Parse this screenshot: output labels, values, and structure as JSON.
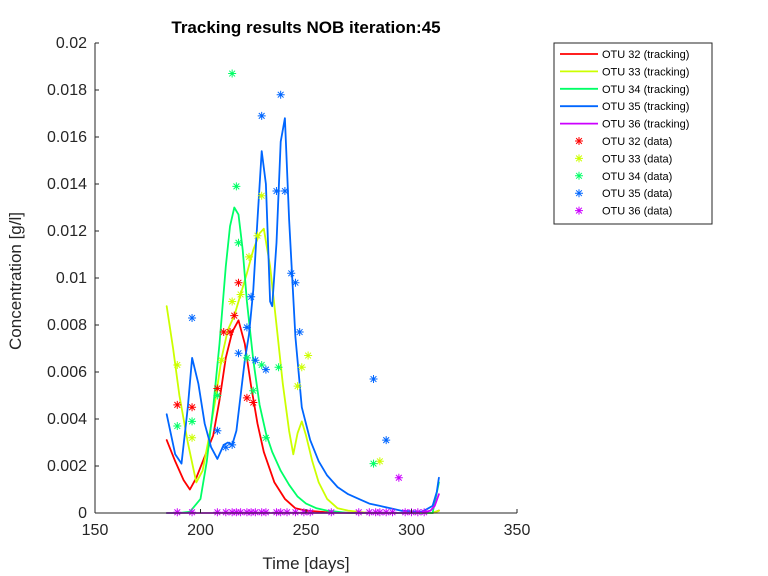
{
  "chart_data": {
    "type": "line",
    "title": "Tracking results NOB iteration:45",
    "xlabel": "Time [days]",
    "ylabel": "Concentration [g/l]",
    "xlim": [
      150,
      350
    ],
    "ylim": [
      0,
      0.02
    ],
    "xticks": [
      "150",
      "200",
      "250",
      "300",
      "350"
    ],
    "xtick_values": [
      150,
      200,
      250,
      300,
      350
    ],
    "yticks": [
      "0",
      "0.002",
      "0.004",
      "0.006",
      "0.008",
      "0.01",
      "0.012",
      "0.014",
      "0.016",
      "0.018",
      "0.02"
    ],
    "ytick_values": [
      0,
      0.002,
      0.004,
      0.006,
      0.008,
      0.01,
      0.012,
      0.014,
      0.016,
      0.018,
      0.02
    ],
    "grid": false,
    "legend_position": "top-right outside",
    "series": [
      {
        "name": "OTU 32 (tracking)",
        "kind": "line",
        "color": "#ff0000",
        "x": [
          184,
          188,
          192,
          195,
          198,
          202,
          206,
          209,
          212,
          215,
          218,
          221,
          224,
          227,
          230,
          235,
          240,
          245,
          250,
          260,
          270,
          280,
          300,
          310,
          313
        ],
        "y": [
          0.0031,
          0.0022,
          0.0014,
          0.001,
          0.0015,
          0.0024,
          0.0033,
          0.0048,
          0.0066,
          0.0077,
          0.0082,
          0.0072,
          0.0054,
          0.0038,
          0.0026,
          0.0013,
          0.0006,
          0.0002,
          0.0001,
          3e-05,
          1e-05,
          0,
          0,
          0,
          0.0001
        ]
      },
      {
        "name": "OTU 33 (tracking)",
        "kind": "line",
        "color": "#ccff00",
        "x": [
          184,
          187,
          190,
          194,
          198,
          201,
          204,
          207,
          210,
          213,
          216,
          219,
          222,
          225,
          228,
          230,
          233,
          236,
          239,
          242,
          244,
          246,
          248,
          250,
          253,
          256,
          260,
          265,
          270,
          280,
          300,
          310,
          313
        ],
        "y": [
          0.0088,
          0.007,
          0.005,
          0.003,
          0.0013,
          0.0018,
          0.0032,
          0.0048,
          0.0066,
          0.0078,
          0.0084,
          0.0093,
          0.0102,
          0.0112,
          0.0119,
          0.0121,
          0.0105,
          0.008,
          0.0055,
          0.0035,
          0.0025,
          0.0034,
          0.0039,
          0.0033,
          0.0022,
          0.0013,
          0.0006,
          0.0002,
          0.0001,
          0,
          0,
          0,
          0.0001
        ]
      },
      {
        "name": "OTU 34 (tracking)",
        "kind": "line",
        "color": "#00ff66",
        "x": [
          184,
          190,
          195,
          200,
          203,
          206,
          209,
          212,
          214,
          216,
          218,
          220,
          222,
          225,
          228,
          231,
          234,
          238,
          242,
          246,
          250,
          255,
          260,
          265,
          270,
          280,
          300,
          310,
          313
        ],
        "y": [
          0,
          0,
          5e-05,
          0.0006,
          0.0022,
          0.0045,
          0.0072,
          0.0105,
          0.0122,
          0.013,
          0.0127,
          0.0112,
          0.009,
          0.0065,
          0.0046,
          0.0034,
          0.0026,
          0.0018,
          0.0012,
          0.0007,
          0.0004,
          0.0002,
          0.0001,
          5e-05,
          0,
          0,
          0,
          0,
          0.0013
        ]
      },
      {
        "name": "OTU 35 (tracking)",
        "kind": "line",
        "color": "#0066ff",
        "x": [
          184,
          188,
          191,
          194,
          196,
          199,
          202,
          205,
          208,
          211,
          213,
          215,
          217,
          219,
          221,
          223,
          225,
          227,
          229,
          231,
          233,
          234,
          236,
          238,
          240,
          242,
          245,
          248,
          252,
          256,
          260,
          265,
          270,
          275,
          280,
          285,
          290,
          295,
          300,
          305,
          310,
          312,
          313
        ],
        "y": [
          0.0042,
          0.0025,
          0.0021,
          0.0045,
          0.0066,
          0.0055,
          0.0038,
          0.0028,
          0.0023,
          0.0029,
          0.003,
          0.0029,
          0.0035,
          0.005,
          0.0065,
          0.0076,
          0.0095,
          0.0125,
          0.0154,
          0.014,
          0.009,
          0.0088,
          0.0115,
          0.0158,
          0.0168,
          0.0125,
          0.0075,
          0.0045,
          0.0031,
          0.0022,
          0.0016,
          0.0011,
          0.0008,
          0.0006,
          0.0004,
          0.0003,
          0.0002,
          0.0001,
          7e-05,
          5e-05,
          0.0003,
          0.0009,
          0.0015
        ]
      },
      {
        "name": "OTU 36 (tracking)",
        "kind": "line",
        "color": "#cc00ff",
        "x": [
          184,
          200,
          250,
          300,
          306,
          309,
          311,
          313
        ],
        "y": [
          0,
          0,
          0,
          0,
          3e-05,
          0.0001,
          0.0003,
          0.0008
        ]
      },
      {
        "name": "OTU 32 (data)",
        "kind": "scatter",
        "color": "#ff0000",
        "x": [
          189,
          196,
          208,
          211,
          214,
          216,
          218,
          222,
          225
        ],
        "y": [
          0.0046,
          0.0045,
          0.0053,
          0.0077,
          0.0077,
          0.0084,
          0.0098,
          0.0049,
          0.0047
        ]
      },
      {
        "name": "OTU 33 (data)",
        "kind": "scatter",
        "color": "#ccff00",
        "x": [
          189,
          196,
          210,
          215,
          219,
          223,
          227,
          229,
          246,
          248,
          251,
          285
        ],
        "y": [
          0.0063,
          0.0032,
          0.0065,
          0.009,
          0.0093,
          0.0109,
          0.0118,
          0.0135,
          0.0054,
          0.0062,
          0.0067,
          0.0022
        ]
      },
      {
        "name": "OTU 34 (data)",
        "kind": "scatter",
        "color": "#00ff66",
        "x": [
          189,
          196,
          208,
          215,
          217,
          218,
          222,
          225,
          229,
          231,
          237,
          282
        ],
        "y": [
          0.0037,
          0.0039,
          0.005,
          0.0187,
          0.0139,
          0.0115,
          0.0066,
          0.0052,
          0.0063,
          0.0032,
          0.0062,
          0.0021
        ]
      },
      {
        "name": "OTU 35 (data)",
        "kind": "scatter",
        "color": "#0066ff",
        "x": [
          196,
          208,
          212,
          215,
          218,
          222,
          224,
          226,
          229,
          231,
          236,
          238,
          240,
          243,
          245,
          247,
          282,
          288
        ],
        "y": [
          0.0083,
          0.0035,
          0.0028,
          0.0029,
          0.0068,
          0.0079,
          0.0092,
          0.0065,
          0.0169,
          0.0061,
          0.0137,
          0.0178,
          0.0137,
          0.0102,
          0.0098,
          0.0077,
          0.0057,
          0.0031
        ]
      },
      {
        "name": "OTU 36 (data)",
        "kind": "scatter",
        "color": "#cc00ff",
        "x": [
          189,
          196,
          208,
          212,
          215,
          217,
          219,
          222,
          224,
          226,
          229,
          231,
          236,
          238,
          241,
          245,
          249,
          252,
          262,
          275,
          280,
          283,
          285,
          288,
          291,
          294,
          297,
          300,
          303,
          306
        ],
        "y": [
          3e-05,
          3e-05,
          3e-05,
          3e-05,
          3e-05,
          3e-05,
          3e-05,
          3e-05,
          3e-05,
          3e-05,
          3e-05,
          3e-05,
          3e-05,
          3e-05,
          3e-05,
          3e-05,
          3e-05,
          3e-05,
          3e-05,
          3e-05,
          3e-05,
          3e-05,
          3e-05,
          3e-05,
          3e-05,
          0.0015,
          3e-05,
          3e-05,
          3e-05,
          3e-05
        ]
      }
    ]
  }
}
